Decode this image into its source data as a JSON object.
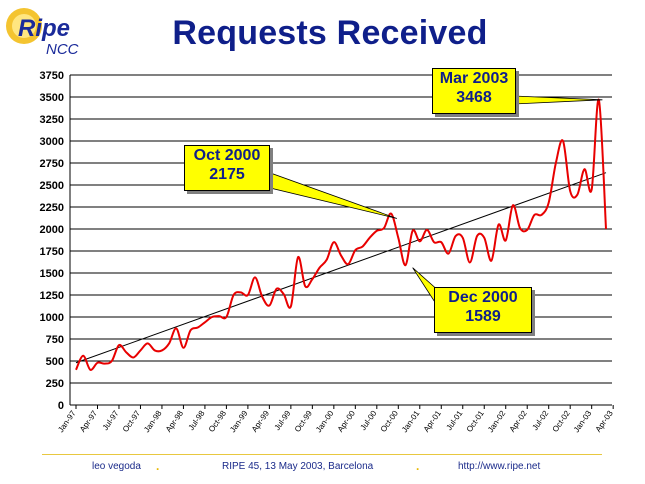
{
  "logo": {
    "text_main": "Ripe",
    "text_sub": "NCC"
  },
  "title": "Requests Received",
  "footer": {
    "author": "leo vegoda",
    "event": "RIPE 45, 13 May 2003, Barcelona",
    "url": "http://www.ripe.net",
    "separator": "."
  },
  "callouts": [
    {
      "id": "mar2003",
      "line1": "Mar 2003",
      "line2": "3468"
    },
    {
      "id": "oct2000",
      "line1": "Oct 2000",
      "line2": "2175"
    },
    {
      "id": "dec2000",
      "line1": "Dec 2000",
      "line2": "1589"
    }
  ],
  "colors": {
    "series": "#e80000",
    "trend": "#000000",
    "title": "#0f1f8a",
    "callout_fill": "#ffff00",
    "grid": "#000000"
  },
  "chart_data": {
    "type": "line",
    "title": "Requests Received",
    "xlabel": "",
    "ylabel": "",
    "ylim": [
      0,
      3750
    ],
    "yticks": [
      0,
      250,
      500,
      750,
      1000,
      1250,
      1500,
      1750,
      2000,
      2250,
      2500,
      2750,
      3000,
      3250,
      3500,
      3750
    ],
    "grid": true,
    "x_tick_labels": [
      "Jan-97",
      "Apr-97",
      "Jul-97",
      "Oct-97",
      "Jan-98",
      "Apr-98",
      "Jul-98",
      "Oct-98",
      "Jan-99",
      "Apr-99",
      "Jul-99",
      "Oct-99",
      "Jan-00",
      "Apr-00",
      "Jul-00",
      "Oct-00",
      "Jan-01",
      "Apr-01",
      "Jul-01",
      "Oct-01",
      "Jan-02",
      "Apr-02",
      "Jul-02",
      "Oct-02",
      "Jan-03",
      "Apr-03"
    ],
    "series": [
      {
        "values": [
          400,
          560,
          400,
          480,
          470,
          500,
          680,
          600,
          540,
          620,
          700,
          620,
          620,
          700,
          870,
          650,
          850,
          880,
          940,
          1000,
          1010,
          1000,
          1250,
          1280,
          1250,
          1450,
          1230,
          1130,
          1320,
          1260,
          1120,
          1680,
          1350,
          1430,
          1560,
          1650,
          1850,
          1700,
          1600,
          1760,
          1800,
          1900,
          1980,
          2010,
          2175,
          1900,
          1589,
          1980,
          1860,
          1990,
          1850,
          1850,
          1720,
          1920,
          1900,
          1620,
          1920,
          1900,
          1640,
          2050,
          1870,
          2270,
          2010,
          1990,
          2160,
          2160,
          2300,
          2750,
          3000,
          2430,
          2390,
          2680,
          2450,
          3468,
          2000
        ]
      }
    ],
    "trendline": {
      "start": 480,
      "end": 2640
    },
    "annotations": [
      {
        "label": "Mar 2003 3468",
        "x": "Mar-03",
        "y": 3468
      },
      {
        "label": "Oct 2000 2175",
        "x": "Oct-00",
        "y": 2175
      },
      {
        "label": "Dec 2000 1589",
        "x": "Dec-00",
        "y": 1589
      }
    ]
  }
}
